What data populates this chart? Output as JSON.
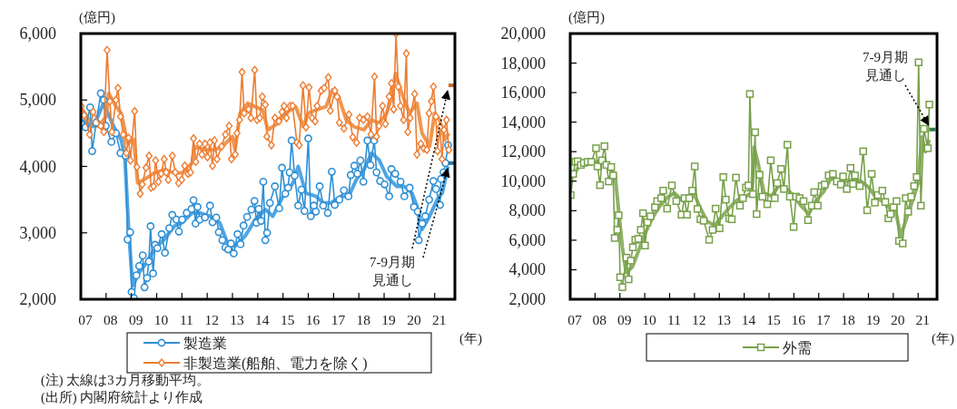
{
  "chart_data": [
    {
      "type": "line",
      "ylabel": "(億円)",
      "xlabel": "(年)",
      "xlim": [
        2007,
        2021.8
      ],
      "ylim": [
        2000,
        6000
      ],
      "xticks": [
        {
          "value": 2007,
          "label": "07"
        },
        {
          "value": 2008,
          "label": "08"
        },
        {
          "value": 2009,
          "label": "09"
        },
        {
          "value": 2010,
          "label": "10"
        },
        {
          "value": 2011,
          "label": "11"
        },
        {
          "value": 2012,
          "label": "12"
        },
        {
          "value": 2013,
          "label": "13"
        },
        {
          "value": 2014,
          "label": "14"
        },
        {
          "value": 2015,
          "label": "15"
        },
        {
          "value": 2016,
          "label": "16"
        },
        {
          "value": 2017,
          "label": "17"
        },
        {
          "value": 2018,
          "label": "18"
        },
        {
          "value": 2019,
          "label": "19"
        },
        {
          "value": 2020,
          "label": "20"
        },
        {
          "value": 2021,
          "label": "21"
        }
      ],
      "yticks": [
        {
          "value": 2000,
          "label": "2,000"
        },
        {
          "value": 3000,
          "label": "3,000"
        },
        {
          "value": 4000,
          "label": "4,000"
        },
        {
          "value": 5000,
          "label": "5,000"
        },
        {
          "value": 6000,
          "label": "6,000"
        }
      ],
      "grid": false,
      "legend": "bottom",
      "series": [
        {
          "name": "製造業",
          "color": "#2e8fd4",
          "marker": "circle",
          "x": [
            2007.01,
            2007.19,
            2007.37,
            2007.45,
            2007.61,
            2007.79,
            2007.91,
            2007.99,
            2008.21,
            2008.39,
            2008.57,
            2008.77,
            2008.85,
            2008.95,
            2009.01,
            2009.1,
            2009.2,
            2009.31,
            2009.45,
            2009.52,
            2009.62,
            2009.69,
            2009.76,
            2009.86,
            2009.94,
            2010.03,
            2010.2,
            2010.33,
            2010.5,
            2010.62,
            2010.78,
            2010.88,
            2011.01,
            2011.19,
            2011.38,
            2011.46,
            2011.54,
            2011.62,
            2011.71,
            2011.91,
            2012.11,
            2012.21,
            2012.36,
            2012.46,
            2012.6,
            2012.72,
            2012.83,
            2012.94,
            2013.05,
            2013.2,
            2013.32,
            2013.44,
            2013.58,
            2013.75,
            2013.87,
            2013.95,
            2014.04,
            2014.13,
            2014.22,
            2014.3,
            2014.37,
            2014.48,
            2014.68,
            2014.85,
            2014.96,
            2015.09,
            2015.2,
            2015.26,
            2015.34,
            2015.46,
            2015.6,
            2015.73,
            2015.85,
            2016.0,
            2016.1,
            2016.22,
            2016.3,
            2016.45,
            2016.59,
            2016.77,
            2016.93,
            2017.05,
            2017.23,
            2017.41,
            2017.59,
            2017.68,
            2017.82,
            2017.94,
            2018.06,
            2018.18,
            2018.34,
            2018.46,
            2018.61,
            2018.7,
            2018.84,
            2019.02,
            2019.2,
            2019.29,
            2019.44,
            2019.65,
            2019.8,
            2020.01,
            2020.18,
            2020.33,
            2020.37,
            2020.51,
            2020.63,
            2020.78,
            2020.95,
            2021.05,
            2021.21,
            2021.25,
            2021.35,
            2021.43,
            2021.53
          ],
          "values": [
            4640,
            4590,
            4890,
            4230,
            4660,
            5100,
            5000,
            4610,
            4370,
            4500,
            4200,
            4160,
            2900,
            3010,
            2110,
            2020,
            2360,
            2500,
            2660,
            2180,
            2320,
            2570,
            3100,
            2390,
            2820,
            2770,
            2980,
            2700,
            3070,
            3270,
            3200,
            3020,
            3200,
            3300,
            3360,
            3490,
            3140,
            3390,
            3200,
            3230,
            3410,
            3160,
            3230,
            3010,
            2890,
            2780,
            2750,
            2840,
            2690,
            2980,
            2830,
            3110,
            3240,
            3350,
            3480,
            3150,
            3360,
            3180,
            3770,
            2890,
            3000,
            3450,
            3700,
            3370,
            3980,
            3590,
            3680,
            3910,
            4390,
            3860,
            3410,
            3650,
            3330,
            4420,
            3250,
            3410,
            3320,
            3700,
            3410,
            3300,
            3920,
            3420,
            3500,
            3640,
            3550,
            3870,
            4010,
            3890,
            4090,
            3770,
            4390,
            4020,
            4390,
            3910,
            3780,
            3730,
            3550,
            3960,
            3890,
            3770,
            3550,
            3680,
            3390,
            3320,
            2890,
            3140,
            3250,
            3500,
            3780,
            3660,
            3420,
            3810,
            3910,
            4050,
            4320
          ]
        },
        {
          "name": "非製造業(船舶、電力を除く)",
          "color": "#ed7d31",
          "marker": "diamond",
          "x": [
            2007.01,
            2007.13,
            2007.35,
            2007.49,
            2007.79,
            2007.91,
            2008.04,
            2008.15,
            2008.23,
            2008.39,
            2008.47,
            2008.57,
            2008.68,
            2008.8,
            2008.89,
            2008.96,
            2009.13,
            2009.22,
            2009.35,
            2009.43,
            2009.58,
            2009.7,
            2009.78,
            2009.88,
            2009.96,
            2010.07,
            2010.18,
            2010.3,
            2010.38,
            2010.46,
            2010.62,
            2010.74,
            2010.87,
            2010.99,
            2011.11,
            2011.24,
            2011.34,
            2011.46,
            2011.55,
            2011.7,
            2011.79,
            2011.91,
            2012.01,
            2012.11,
            2012.21,
            2012.29,
            2012.39,
            2012.57,
            2012.72,
            2012.87,
            2012.96,
            2013.11,
            2013.18,
            2013.28,
            2013.38,
            2013.46,
            2013.64,
            2013.73,
            2013.88,
            2013.97,
            2014.08,
            2014.18,
            2014.3,
            2014.36,
            2014.54,
            2014.68,
            2014.84,
            2014.96,
            2015.04,
            2015.14,
            2015.28,
            2015.38,
            2015.55,
            2015.64,
            2015.79,
            2015.91,
            2016.03,
            2016.15,
            2016.27,
            2016.35,
            2016.51,
            2016.63,
            2016.79,
            2016.87,
            2017.05,
            2017.14,
            2017.23,
            2017.41,
            2017.61,
            2017.76,
            2017.91,
            2018.03,
            2018.18,
            2018.34,
            2018.48,
            2018.62,
            2018.7,
            2018.8,
            2018.94,
            2019.05,
            2019.2,
            2019.29,
            2019.38,
            2019.47,
            2019.56,
            2019.65,
            2019.77,
            2019.88,
            2019.94,
            2020.03,
            2020.21,
            2020.3,
            2020.45,
            2020.57,
            2020.69,
            2020.78,
            2020.87,
            2020.95,
            2021.05,
            2021.11,
            2021.21,
            2021.29,
            2021.37,
            2021.47,
            2021.56
          ],
          "values": [
            4910,
            4770,
            4480,
            4820,
            4610,
            4520,
            5750,
            4980,
            4520,
            5000,
            5180,
            4750,
            4480,
            4200,
            4430,
            4090,
            4830,
            3990,
            3590,
            3730,
            3980,
            4160,
            3680,
            3700,
            4090,
            3770,
            3890,
            4110,
            3910,
            3800,
            4160,
            3910,
            3750,
            3800,
            4010,
            3890,
            3910,
            4420,
            4070,
            4340,
            4180,
            4340,
            4140,
            4360,
            4010,
            4390,
            4110,
            4300,
            4480,
            4610,
            4110,
            4180,
            4500,
            4700,
            5420,
            4800,
            4860,
            4730,
            5450,
            4700,
            4730,
            5050,
            4930,
            4450,
            4320,
            4730,
            4680,
            4820,
            4910,
            4730,
            4910,
            4910,
            4360,
            4320,
            5220,
            4590,
            5190,
            4730,
            4680,
            4910,
            5140,
            5180,
            5340,
            4840,
            5140,
            5050,
            4660,
            4570,
            4780,
            4440,
            4360,
            4730,
            4700,
            4750,
            4480,
            5350,
            4450,
            4610,
            4910,
            4640,
            5050,
            5250,
            4860,
            6000,
            5200,
            4910,
            4700,
            5700,
            4520,
            4730,
            5090,
            4180,
            4340,
            4270,
            4250,
            4800,
            4980,
            5200,
            4750,
            4230,
            4590,
            4110,
            4550,
            4700,
            4250
          ]
        },
        {
          "color": "#3d9be0",
          "marker": "none",
          "x": [
            2007.0,
            2007.5,
            2007.9,
            2008.3,
            2008.6,
            2008.75,
            2008.9,
            2009.05,
            2009.3,
            2009.6,
            2009.9,
            2010.3,
            2010.7,
            2011.0,
            2011.4,
            2011.7,
            2012.1,
            2012.5,
            2012.8,
            2013.1,
            2013.5,
            2013.9,
            2014.3,
            2014.6,
            2015.0,
            2015.4,
            2015.6,
            2015.9,
            2016.3,
            2016.6,
            2016.9,
            2017.3,
            2017.6,
            2017.9,
            2018.2,
            2018.5,
            2018.8,
            2019.1,
            2019.5,
            2019.8,
            2020.1,
            2020.3,
            2020.5,
            2020.8,
            2021.1,
            2021.3,
            2021.53
          ],
          "values": [
            4700,
            4600,
            4950,
            4600,
            4400,
            4100,
            3000,
            2200,
            2400,
            2550,
            2750,
            2900,
            3100,
            3150,
            3300,
            3300,
            3250,
            3150,
            2850,
            2800,
            2950,
            3200,
            3350,
            3250,
            3550,
            3750,
            4000,
            3600,
            3550,
            3450,
            3450,
            3550,
            3550,
            3800,
            3950,
            4200,
            4100,
            3850,
            3700,
            3700,
            3600,
            3400,
            3050,
            3250,
            3500,
            3600,
            4000
          ]
        },
        {
          "color": "#f08a3c",
          "marker": "none",
          "x": [
            2007.0,
            2007.4,
            2007.7,
            2008.0,
            2008.1,
            2008.4,
            2008.6,
            2008.85,
            2009.1,
            2009.25,
            2009.5,
            2009.9,
            2010.3,
            2010.7,
            2011.0,
            2011.4,
            2011.5,
            2011.9,
            2012.3,
            2012.6,
            2013.0,
            2013.1,
            2013.3,
            2013.6,
            2013.9,
            2014.2,
            2014.4,
            2014.8,
            2015.1,
            2015.5,
            2015.8,
            2016.0,
            2016.3,
            2016.7,
            2016.95,
            2017.2,
            2017.5,
            2017.8,
            2018.2,
            2018.5,
            2018.8,
            2019.1,
            2019.3,
            2019.45,
            2019.7,
            2020.0,
            2020.3,
            2020.5,
            2020.8,
            2021.0,
            2021.2,
            2021.4,
            2021.56
          ],
          "values": [
            4900,
            4650,
            4600,
            4750,
            5100,
            4900,
            4800,
            4350,
            4400,
            3750,
            3800,
            3900,
            3950,
            3900,
            3900,
            4050,
            4300,
            4250,
            4250,
            4300,
            4450,
            4250,
            4800,
            4950,
            4900,
            4850,
            4550,
            4650,
            4800,
            4900,
            4600,
            4800,
            4850,
            4900,
            5150,
            5050,
            4700,
            4600,
            4550,
            4700,
            4650,
            4800,
            5050,
            5400,
            5100,
            4800,
            4950,
            4500,
            4300,
            4800,
            4700,
            4400,
            4500
          ]
        },
        {
          "color": "#1f6496",
          "marker": "none",
          "x": [
            2021.55,
            2021.78
          ],
          "values": [
            4050,
            4050
          ]
        },
        {
          "color": "#c55a11",
          "marker": "none",
          "x": [
            2021.55,
            2021.78
          ],
          "values": [
            5220,
            5220
          ]
        }
      ],
      "annotations": [
        {
          "text": "7-9月期見通し",
          "x": 2021.55,
          "y": 5220
        },
        "(注) 太線は3カ月移動平均。",
        "(出所) 内閣府統計より作成"
      ]
    },
    {
      "type": "line",
      "ylabel": "(億円)",
      "xlabel": "(年)",
      "xlim": [
        2007,
        2021.76
      ],
      "ylim": [
        2000,
        20000
      ],
      "xticks": [
        {
          "value": 2007,
          "label": "07"
        },
        {
          "value": 2008,
          "label": "08"
        },
        {
          "value": 2009,
          "label": "09"
        },
        {
          "value": 2010,
          "label": "10"
        },
        {
          "value": 2011,
          "label": "11"
        },
        {
          "value": 2012,
          "label": "12"
        },
        {
          "value": 2013,
          "label": "13"
        },
        {
          "value": 2014,
          "label": "14"
        },
        {
          "value": 2015,
          "label": "15"
        },
        {
          "value": 2016,
          "label": "16"
        },
        {
          "value": 2017,
          "label": "17"
        },
        {
          "value": 2018,
          "label": "18"
        },
        {
          "value": 2019,
          "label": "19"
        },
        {
          "value": 2020,
          "label": "20"
        },
        {
          "value": 2021,
          "label": "21"
        }
      ],
      "yticks": [
        {
          "value": 2000,
          "label": "2,000"
        },
        {
          "value": 4000,
          "label": "4,000"
        },
        {
          "value": 6000,
          "label": "6,000"
        },
        {
          "value": 8000,
          "label": "8,000"
        },
        {
          "value": 10000,
          "label": "10,000"
        },
        {
          "value": 12000,
          "label": "12,000"
        },
        {
          "value": 14000,
          "label": "14,000"
        },
        {
          "value": 16000,
          "label": "16,000"
        },
        {
          "value": 18000,
          "label": "18,000"
        },
        {
          "value": 20000,
          "label": "20,000"
        }
      ],
      "grid": false,
      "legend": "bottom",
      "series": [
        {
          "name": "外需",
          "color": "#77a04a",
          "marker": "square",
          "x": [
            2007.02,
            2007.12,
            2007.21,
            2007.3,
            2007.43,
            2007.55,
            2007.7,
            2007.85,
            2008.04,
            2008.1,
            2008.2,
            2008.28,
            2008.38,
            2008.46,
            2008.55,
            2008.65,
            2008.73,
            2008.79,
            2008.89,
            2008.95,
            2009.01,
            2009.1,
            2009.26,
            2009.35,
            2009.44,
            2009.52,
            2009.62,
            2009.74,
            2009.84,
            2009.93,
            2010.01,
            2010.11,
            2010.23,
            2010.41,
            2010.5,
            2010.66,
            2010.74,
            2010.9,
            2011.09,
            2011.27,
            2011.48,
            2011.6,
            2011.7,
            2011.79,
            2011.91,
            2012.01,
            2012.12,
            2012.24,
            2012.37,
            2012.59,
            2012.73,
            2012.85,
            2013.01,
            2013.16,
            2013.26,
            2013.4,
            2013.5,
            2013.67,
            2013.83,
            2013.95,
            2014.07,
            2014.17,
            2014.23,
            2014.35,
            2014.44,
            2014.5,
            2014.62,
            2014.74,
            2014.93,
            2015.07,
            2015.23,
            2015.33,
            2015.48,
            2015.6,
            2015.74,
            2015.84,
            2015.99,
            2016.09,
            2016.23,
            2016.39,
            2016.57,
            2016.72,
            2016.82,
            2016.96,
            2017.12,
            2017.24,
            2017.4,
            2017.57,
            2017.73,
            2017.89,
            2017.98,
            2018.13,
            2018.28,
            2018.38,
            2018.46,
            2018.65,
            2018.79,
            2018.95,
            2019.13,
            2019.26,
            2019.38,
            2019.56,
            2019.68,
            2019.8,
            2019.89,
            2020.01,
            2020.13,
            2020.23,
            2020.38,
            2020.5,
            2020.6,
            2020.72,
            2020.84,
            2020.94,
            2021.02,
            2021.11,
            2021.23,
            2021.39,
            2021.45
          ],
          "values": [
            9060,
            10490,
            11310,
            11350,
            11100,
            11240,
            11310,
            11310,
            12230,
            11000,
            9730,
            11410,
            12370,
            11100,
            9980,
            10960,
            10390,
            6150,
            6700,
            7690,
            3490,
            2820,
            4820,
            3350,
            4620,
            5520,
            6030,
            6090,
            6700,
            7830,
            5640,
            7220,
            7620,
            8240,
            8650,
            8850,
            9360,
            8140,
            9710,
            8650,
            7730,
            8850,
            7730,
            8850,
            9360,
            11000,
            8120,
            7420,
            7320,
            6030,
            6700,
            8140,
            6810,
            10280,
            8750,
            7480,
            7420,
            10240,
            8340,
            8850,
            9570,
            9710,
            15910,
            9120,
            13310,
            7770,
            10430,
            8950,
            8440,
            11410,
            8850,
            9870,
            10830,
            9470,
            12470,
            8950,
            6900,
            8950,
            8850,
            8650,
            7360,
            8340,
            9260,
            8340,
            9670,
            9770,
            10390,
            10490,
            9980,
            9770,
            10320,
            9470,
            10900,
            9810,
            10390,
            9670,
            12020,
            8030,
            10490,
            8550,
            9060,
            9360,
            8590,
            7480,
            7770,
            8240,
            8650,
            5950,
            5780,
            8850,
            7930,
            8950,
            9670,
            10280,
            18050,
            8340,
            13550,
            12230,
            15190
          ]
        },
        {
          "color": "#82a957",
          "marker": "none",
          "x": [
            2007.0,
            2007.2,
            2007.4,
            2007.7,
            2008.0,
            2008.3,
            2008.5,
            2008.8,
            2008.95,
            2009.1,
            2009.25,
            2009.5,
            2009.8,
            2010.0,
            2010.3,
            2010.6,
            2010.9,
            2011.2,
            2011.5,
            2011.8,
            2012.0,
            2012.2,
            2012.5,
            2012.8,
            2013.1,
            2013.4,
            2013.7,
            2014.0,
            2014.3,
            2014.4,
            2014.55,
            2014.8,
            2015.1,
            2015.4,
            2015.7,
            2016.0,
            2016.3,
            2016.6,
            2016.9,
            2017.2,
            2017.5,
            2017.8,
            2018.1,
            2018.4,
            2018.7,
            2019.0,
            2019.3,
            2019.6,
            2019.9,
            2020.1,
            2020.3,
            2020.5,
            2020.8,
            2021.0,
            2021.15,
            2021.3,
            2021.45
          ],
          "values": [
            10200,
            10600,
            11100,
            11200,
            11300,
            11400,
            11000,
            10500,
            8000,
            5500,
            3800,
            4200,
            5500,
            6400,
            7500,
            8300,
            8900,
            9200,
            8700,
            8700,
            9100,
            8300,
            7300,
            7000,
            7600,
            8200,
            8700,
            8900,
            9200,
            12300,
            11300,
            9200,
            9000,
            9700,
            9500,
            9000,
            8300,
            7800,
            8700,
            9300,
            10200,
            10100,
            10000,
            10100,
            10000,
            9600,
            8900,
            8600,
            8100,
            7900,
            6300,
            7300,
            8800,
            9900,
            13000,
            12000,
            12800
          ]
        },
        {
          "color": "#1e6b36",
          "marker": "none",
          "x": [
            2021.45,
            2021.7
          ],
          "values": [
            13500,
            13500
          ]
        }
      ],
      "annotations": [
        {
          "text": "7-9月期見通し",
          "x": 2021.45,
          "y": 13500
        }
      ]
    }
  ]
}
